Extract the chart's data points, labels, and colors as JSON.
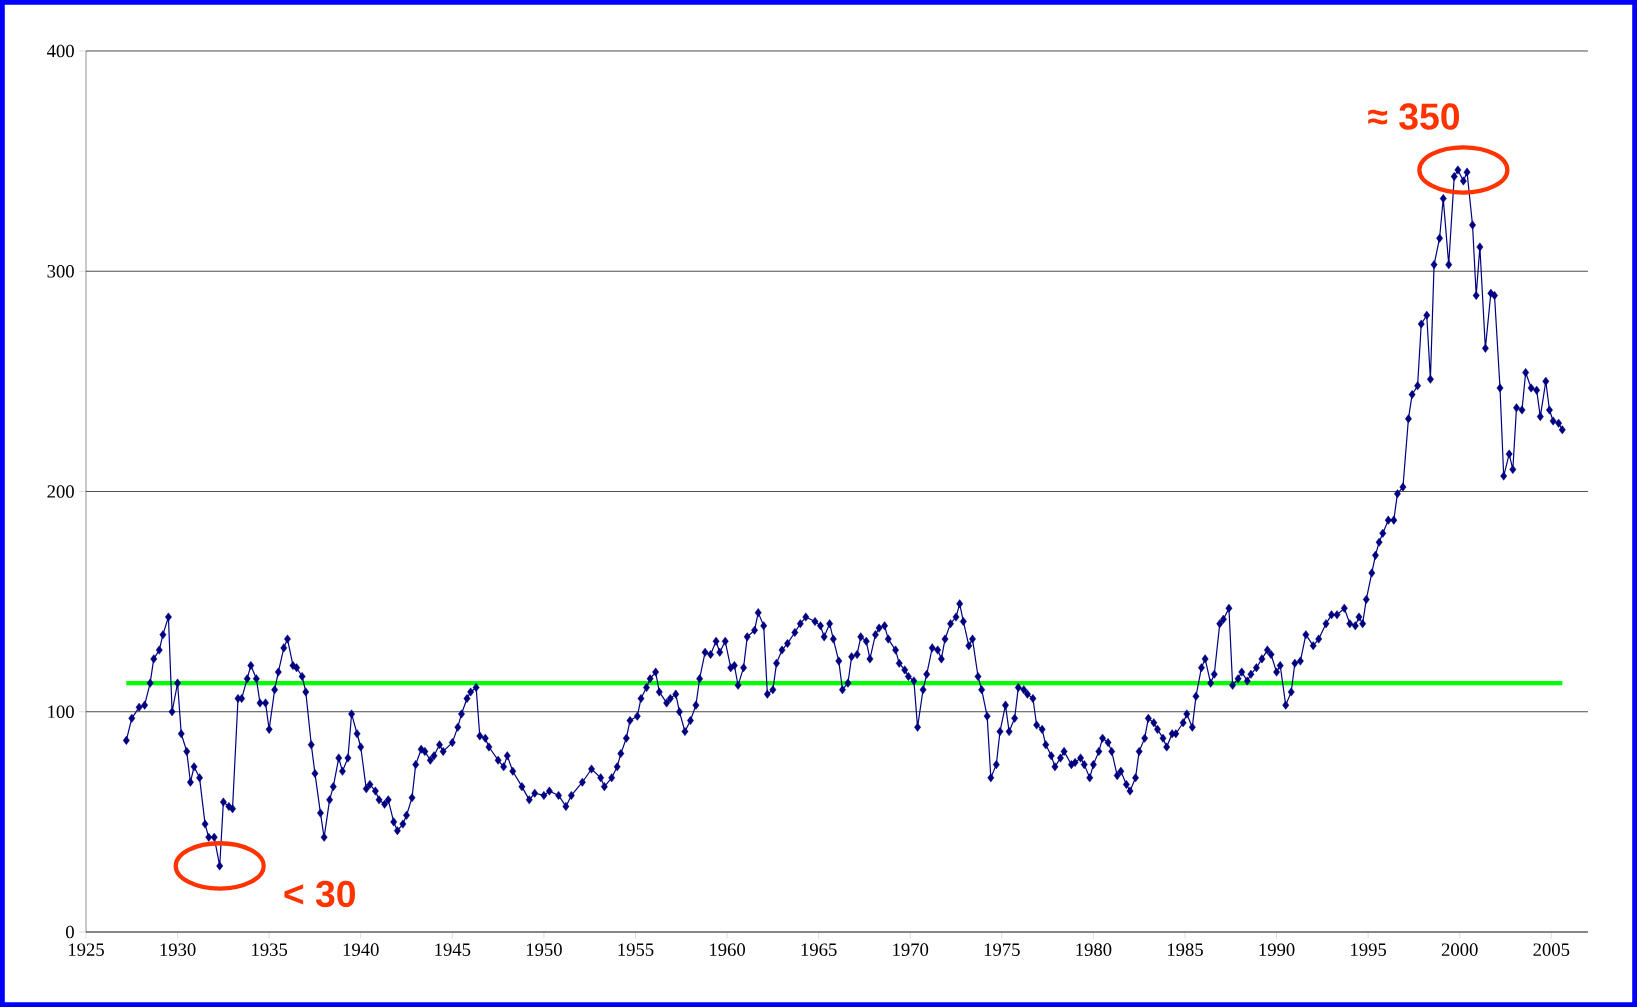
{
  "chart_data": {
    "type": "line",
    "xlim": [
      1925,
      2007
    ],
    "ylim": [
      0,
      400
    ],
    "xticks": [
      1925,
      1930,
      1935,
      1940,
      1945,
      1950,
      1955,
      1960,
      1965,
      1970,
      1975,
      1980,
      1985,
      1990,
      1995,
      2000,
      2005
    ],
    "yticks": [
      0,
      100,
      200,
      300,
      400
    ],
    "grid": "y",
    "series": [
      {
        "marker": "diamond",
        "color": "#000080",
        "x": [
          1927.2,
          1927.5,
          1927.9,
          1928.2,
          1928.5,
          1928.7,
          1929,
          1929.2,
          1929.5,
          1929.7,
          1930,
          1930.2,
          1930.5,
          1930.7,
          1930.9,
          1931.2,
          1931.5,
          1931.7,
          1932,
          1932.3,
          1932.5,
          1932.8,
          1933,
          1933.3,
          1933.5,
          1933.8,
          1934,
          1934.3,
          1934.5,
          1934.8,
          1935,
          1935.3,
          1935.5,
          1935.8,
          1936,
          1936.3,
          1936.5,
          1936.8,
          1937,
          1937.3,
          1937.5,
          1937.8,
          1938,
          1938.3,
          1938.5,
          1938.8,
          1939,
          1939.3,
          1939.5,
          1939.8,
          1940,
          1940.3,
          1940.5,
          1940.8,
          1941,
          1941.3,
          1941.5,
          1941.8,
          1942,
          1942.3,
          1942.5,
          1942.8,
          1943,
          1943.3,
          1943.5,
          1943.8,
          1944,
          1944.3,
          1944.5,
          1945,
          1945.3,
          1945.5,
          1945.8,
          1946,
          1946.3,
          1946.5,
          1946.8,
          1947,
          1947.5,
          1947.8,
          1948,
          1948.3,
          1948.8,
          1949.2,
          1949.5,
          1950,
          1950.3,
          1950.8,
          1951.2,
          1951.5,
          1952.1,
          1952.6,
          1953.1,
          1953.3,
          1953.7,
          1954.0,
          1954.2,
          1954.5,
          1954.7,
          1955.1,
          1955.3,
          1955.6,
          1955.8,
          1956.1,
          1956.3,
          1956.7,
          1956.9,
          1957.2,
          1957.4,
          1957.7,
          1958.0,
          1958.3,
          1958.5,
          1958.8,
          1959.1,
          1959.4,
          1959.6,
          1959.9,
          1960.2,
          1960.4,
          1960.6,
          1960.9,
          1961.1,
          1961.5,
          1961.7,
          1962.0,
          1962.2,
          1962.5,
          1962.7,
          1963.0,
          1963.3,
          1963.7,
          1964.0,
          1964.3,
          1964.8,
          1965.1,
          1965.3,
          1965.6,
          1965.8,
          1966.1,
          1966.3,
          1966.6,
          1966.8,
          1967.1,
          1967.3,
          1967.6,
          1967.8,
          1968.1,
          1968.3,
          1968.6,
          1968.8,
          1969.2,
          1969.4,
          1969.7,
          1969.9,
          1970.2,
          1970.4,
          1970.7,
          1970.9,
          1971.2,
          1971.5,
          1971.7,
          1971.9,
          1972.2,
          1972.5,
          1972.7,
          1972.9,
          1973.2,
          1973.4,
          1973.7,
          1973.9,
          1974.2,
          1974.4,
          1974.7,
          1974.9,
          1975.2,
          1975.4,
          1975.7,
          1975.9,
          1976.2,
          1976.4,
          1976.7,
          1976.9,
          1977.2,
          1977.4,
          1977.7,
          1977.9,
          1978.2,
          1978.4,
          1978.8,
          1979.0,
          1979.3,
          1979.5,
          1979.8,
          1980.0,
          1980.3,
          1980.5,
          1980.8,
          1981.0,
          1981.3,
          1981.5,
          1981.8,
          1982.0,
          1982.3,
          1982.5,
          1982.8,
          1983.0,
          1983.3,
          1983.5,
          1983.8,
          1984.0,
          1984.3,
          1984.5,
          1984.9,
          1985.1,
          1985.4,
          1985.6,
          1985.9,
          1986.1,
          1986.4,
          1986.6,
          1986.9,
          1987.1,
          1987.4,
          1987.6,
          1987.9,
          1988.1,
          1988.4,
          1988.6,
          1988.9,
          1989.2,
          1989.5,
          1989.7,
          1990.0,
          1990.2,
          1990.5,
          1990.8,
          1991,
          1991.3,
          1991.6,
          1992,
          1992.3,
          1992.7,
          1993,
          1993.3,
          1993.7,
          1994,
          1994.3,
          1994.5,
          1994.7,
          1994.9,
          1995.2,
          1995.4,
          1995.6,
          1995.8,
          1996.1,
          1996.4,
          1996.6,
          1996.9,
          1997.2,
          1997.4,
          1997.7,
          1997.9,
          1998.2,
          1998.4,
          1998.6,
          1998.9,
          1999.1,
          1999.4,
          1999.7,
          1999.9,
          2000.2,
          2000.4,
          2000.7,
          2000.9,
          2001.1,
          2001.4,
          2001.7,
          2001.9,
          2002.2,
          2002.4,
          2002.7,
          2002.9,
          2003.1,
          2003.4,
          2003.6,
          2003.9,
          2004.2,
          2004.4,
          2004.7,
          2004.9,
          2005.1,
          2005.4,
          2005.6
        ],
        "values": [
          87,
          97,
          102,
          103,
          113,
          124,
          128,
          135,
          143,
          100,
          113,
          90,
          82,
          68,
          75,
          70,
          49,
          43,
          43,
          30,
          59,
          57,
          56,
          106,
          106,
          115,
          121,
          115,
          104,
          104,
          92,
          110,
          118,
          129,
          133,
          121,
          120,
          116,
          109,
          85,
          72,
          54,
          43,
          60,
          66,
          79,
          73,
          79,
          99,
          90,
          84,
          65,
          67,
          64,
          60,
          58,
          60,
          50,
          46,
          49,
          53,
          61,
          76,
          83,
          82,
          78,
          80,
          85,
          82,
          86,
          93,
          99,
          106,
          109,
          111,
          89,
          88,
          84,
          78,
          75,
          80,
          73,
          66,
          60,
          63,
          62,
          64,
          62,
          57,
          62,
          68,
          74,
          70,
          66,
          70,
          75,
          81,
          88,
          96,
          98,
          106,
          111,
          115,
          118,
          109,
          104,
          106,
          108,
          100,
          91,
          96,
          103,
          115,
          127,
          126,
          132,
          127,
          132,
          120,
          121,
          112,
          120,
          134,
          137,
          145,
          139,
          108,
          110,
          122,
          128,
          131,
          136,
          140,
          143,
          141,
          139,
          134,
          140,
          133,
          123,
          110,
          113,
          125,
          126,
          134,
          132,
          124,
          135,
          138,
          139,
          133,
          128,
          122,
          119,
          116,
          114,
          93,
          110,
          117,
          129,
          128,
          124,
          133,
          140,
          143,
          149,
          141,
          130,
          133,
          116,
          110,
          98,
          70,
          76,
          91,
          103,
          91,
          97,
          111,
          110,
          108,
          106,
          94,
          92,
          85,
          80,
          75,
          79,
          82,
          76,
          77,
          79,
          76,
          70,
          76,
          82,
          88,
          86,
          82,
          71,
          73,
          67,
          64,
          70,
          82,
          88,
          97,
          95,
          92,
          88,
          84,
          90,
          90,
          95,
          99,
          93,
          107,
          120,
          124,
          113,
          117,
          140,
          142,
          147,
          112,
          115,
          118,
          114,
          117,
          120,
          124,
          128,
          126,
          118,
          121,
          103,
          109,
          122,
          123,
          135,
          130,
          133,
          140,
          144,
          144,
          147,
          140,
          139,
          143,
          140,
          151,
          163,
          171,
          177,
          181,
          187,
          187,
          199,
          202,
          233,
          244,
          248,
          276,
          280,
          251,
          303,
          315,
          333,
          303,
          343,
          346,
          341,
          345,
          321,
          289,
          311,
          265,
          290,
          289,
          247,
          207,
          217,
          210,
          238,
          237,
          254,
          247,
          246,
          234,
          250,
          237,
          232,
          231,
          228
        ]
      },
      {
        "marker": "none",
        "color": "#00ff00",
        "x": [
          1927.2,
          2005.6
        ],
        "values": [
          113,
          113
        ]
      }
    ],
    "annotations": [
      {
        "text": "< 30",
        "x": 1932.3,
        "y": 30
      },
      {
        "text": "≈ 350",
        "x": 2000.2,
        "y": 346
      }
    ]
  }
}
